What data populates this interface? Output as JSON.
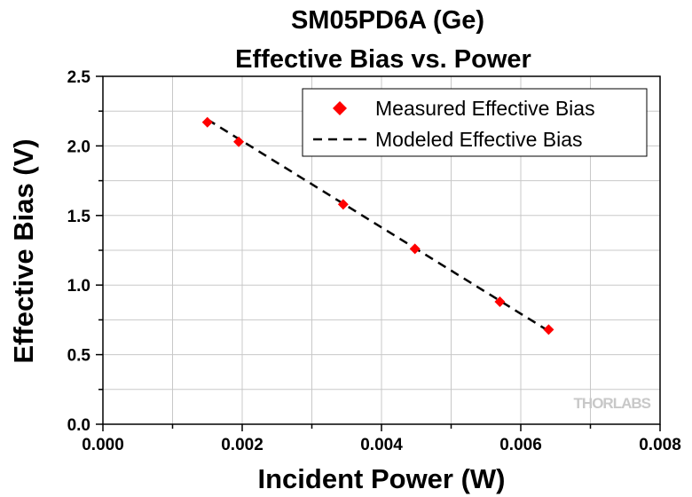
{
  "chart_data": {
    "type": "scatter",
    "title": "SM05PD6A (Ge)",
    "subtitle": "Effective Bias vs. Power",
    "xlabel": "Incident Power (W)",
    "ylabel": "Effective Bias (V)",
    "xlim": [
      0,
      0.008
    ],
    "ylim": [
      0,
      2.5
    ],
    "xticks": [
      "0.000",
      "0.002",
      "0.004",
      "0.006",
      "0.008"
    ],
    "yticks": [
      "0.0",
      "0.5",
      "1.0",
      "1.5",
      "2.0",
      "2.5"
    ],
    "grid": true,
    "legend_position": "top-right",
    "series": [
      {
        "name": "Measured Effective Bias",
        "kind": "scatter",
        "marker": "diamond",
        "color": "#ff0000",
        "x": [
          0.0015,
          0.00195,
          0.00345,
          0.00448,
          0.0057,
          0.0064
        ],
        "y": [
          2.17,
          2.03,
          1.58,
          1.26,
          0.88,
          0.68
        ]
      },
      {
        "name": "Modeled Effective Bias",
        "kind": "line",
        "style": "dashed",
        "color": "#000000",
        "x": [
          0.0015,
          0.0064
        ],
        "y": [
          2.19,
          0.67
        ]
      }
    ]
  },
  "watermark": "THORLABS"
}
